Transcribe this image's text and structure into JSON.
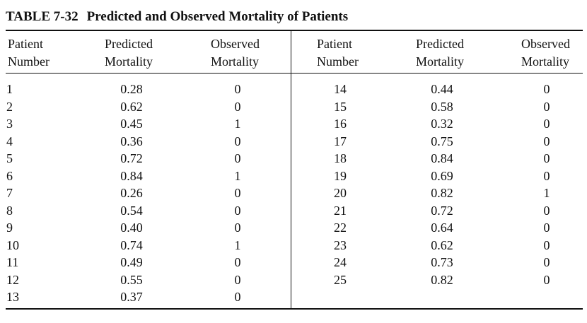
{
  "table": {
    "number": "TABLE 7-32",
    "title": "Predicted and Observed Mortality of Patients",
    "headers": {
      "patient": [
        "Patient",
        "Number"
      ],
      "predicted": [
        "Predicted",
        "Mortality"
      ],
      "observed": [
        "Observed",
        "Mortality"
      ]
    },
    "left_rows": [
      {
        "patient": "1",
        "predicted": "0.28",
        "observed": "0"
      },
      {
        "patient": "2",
        "predicted": "0.62",
        "observed": "0"
      },
      {
        "patient": "3",
        "predicted": "0.45",
        "observed": "1"
      },
      {
        "patient": "4",
        "predicted": "0.36",
        "observed": "0"
      },
      {
        "patient": "5",
        "predicted": "0.72",
        "observed": "0"
      },
      {
        "patient": "6",
        "predicted": "0.84",
        "observed": "1"
      },
      {
        "patient": "7",
        "predicted": "0.26",
        "observed": "0"
      },
      {
        "patient": "8",
        "predicted": "0.54",
        "observed": "0"
      },
      {
        "patient": "9",
        "predicted": "0.40",
        "observed": "0"
      },
      {
        "patient": "10",
        "predicted": "0.74",
        "observed": "1"
      },
      {
        "patient": "11",
        "predicted": "0.49",
        "observed": "0"
      },
      {
        "patient": "12",
        "predicted": "0.55",
        "observed": "0"
      },
      {
        "patient": "13",
        "predicted": "0.37",
        "observed": "0"
      }
    ],
    "right_rows": [
      {
        "patient": "14",
        "predicted": "0.44",
        "observed": "0"
      },
      {
        "patient": "15",
        "predicted": "0.58",
        "observed": "0"
      },
      {
        "patient": "16",
        "predicted": "0.32",
        "observed": "0"
      },
      {
        "patient": "17",
        "predicted": "0.75",
        "observed": "0"
      },
      {
        "patient": "18",
        "predicted": "0.84",
        "observed": "0"
      },
      {
        "patient": "19",
        "predicted": "0.69",
        "observed": "0"
      },
      {
        "patient": "20",
        "predicted": "0.82",
        "observed": "1"
      },
      {
        "patient": "21",
        "predicted": "0.72",
        "observed": "0"
      },
      {
        "patient": "22",
        "predicted": "0.64",
        "observed": "0"
      },
      {
        "patient": "23",
        "predicted": "0.62",
        "observed": "0"
      },
      {
        "patient": "24",
        "predicted": "0.73",
        "observed": "0"
      },
      {
        "patient": "25",
        "predicted": "0.82",
        "observed": "0"
      }
    ]
  }
}
